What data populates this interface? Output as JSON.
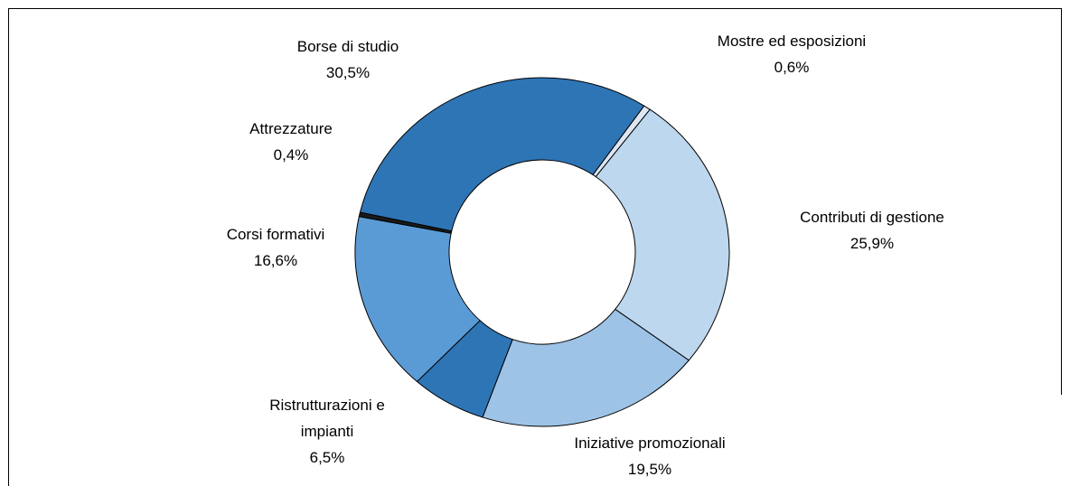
{
  "chart_data": {
    "type": "donut",
    "categories": [
      "Mostre ed esposizioni",
      "Contributi di gestione",
      "Iniziative promozionali",
      "Ristrutturazioni e impianti",
      "Corsi formativi",
      "Attrezzature",
      "Borse di studio"
    ],
    "values": [
      0.6,
      25.9,
      19.5,
      6.5,
      16.6,
      0.4,
      30.5
    ],
    "value_labels": [
      "0,6%",
      "25,9%",
      "19,5%",
      "6,5%",
      "16,6%",
      "0,4%",
      "30,5%"
    ],
    "colors": [
      "#dde7f3",
      "#bdd7ee",
      "#9dc3e6",
      "#2e75b6",
      "#5b9bd5",
      "#1a1a1a",
      "#2e75b6"
    ]
  }
}
